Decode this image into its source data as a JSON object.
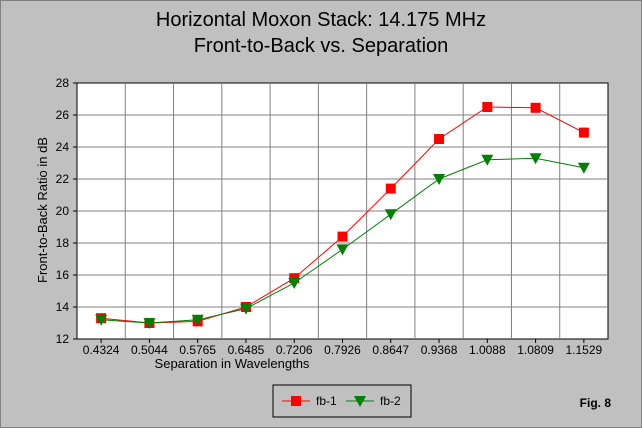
{
  "chart_data": {
    "type": "line",
    "title": [
      "Horizontal Moxon Stack: 14.175 MHz",
      "Front-to-Back vs. Separation"
    ],
    "xlabel": "Separation in Wavelengths",
    "ylabel": "Front-to-Back Ratio in dB",
    "categories": [
      "0.4324",
      "0.5044",
      "0.5765",
      "0.6485",
      "0.7206",
      "0.7926",
      "0.8647",
      "0.9368",
      "1.0088",
      "1.0809",
      "1.1529"
    ],
    "ylim": [
      12,
      28
    ],
    "yticks": [
      12,
      14,
      16,
      18,
      20,
      22,
      24,
      26,
      28
    ],
    "grid": true,
    "legend_placement": "bottom-center",
    "series": [
      {
        "name": "fb-1",
        "color": "#ff0000",
        "marker": "square",
        "values": [
          13.3,
          13.0,
          13.1,
          14.0,
          15.8,
          18.4,
          21.4,
          24.5,
          26.5,
          26.45,
          24.9
        ]
      },
      {
        "name": "fb-2",
        "color": "#008000",
        "marker": "triangle-down",
        "values": [
          13.2,
          13.0,
          13.2,
          13.9,
          15.5,
          17.6,
          19.8,
          22.0,
          23.2,
          23.3,
          22.7
        ]
      }
    ],
    "annotation": "Fig. 8"
  }
}
